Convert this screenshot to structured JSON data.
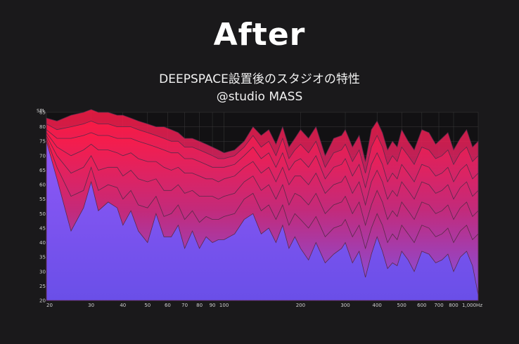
{
  "header": {
    "title": "After",
    "subtitle": "DEEPSPACE設置後のスタジオの特性",
    "credit": "@studio MASS"
  },
  "colors": {
    "background": "#1a191b",
    "plot_background": "#121113",
    "fill_top": "#ff1a44",
    "fill_bottom": "#7a55f0",
    "grid": "#3a3a3a",
    "line": "#5a2a4a"
  },
  "chart_data": {
    "type": "area",
    "ylabel": "SPL",
    "x_scale": "log",
    "xlim": [
      20,
      1000
    ],
    "ylim": [
      20,
      85
    ],
    "x_ticks": [
      20,
      30,
      40,
      50,
      60,
      70,
      80,
      90,
      100,
      200,
      300,
      400,
      500,
      600,
      700,
      800,
      1000
    ],
    "x_tick_labels": [
      "20",
      "30",
      "40",
      "50",
      "60",
      "70",
      "80",
      "90",
      "100",
      "200",
      "300",
      "400",
      "500",
      "600",
      "700",
      "800",
      "1,000Hz"
    ],
    "y_ticks": [
      20,
      25,
      30,
      35,
      40,
      45,
      50,
      55,
      60,
      65,
      70,
      75,
      80,
      85
    ],
    "x": [
      20,
      22,
      25,
      28,
      30,
      32,
      35,
      38,
      40,
      43,
      46,
      50,
      54,
      58,
      62,
      66,
      70,
      75,
      80,
      85,
      90,
      95,
      100,
      110,
      120,
      130,
      140,
      150,
      160,
      170,
      180,
      190,
      200,
      215,
      230,
      250,
      270,
      290,
      300,
      320,
      340,
      360,
      380,
      400,
      420,
      440,
      460,
      480,
      500,
      530,
      560,
      600,
      640,
      680,
      720,
      760,
      800,
      850,
      900,
      950,
      1000
    ],
    "series": [
      {
        "values": [
          83,
          82,
          84,
          85,
          86,
          85,
          85,
          84,
          84,
          83,
          82,
          81,
          80,
          80,
          79,
          78,
          76,
          76,
          75,
          74,
          73,
          72,
          71,
          72,
          75,
          80,
          77,
          79,
          74,
          80,
          73,
          76,
          79,
          76,
          80,
          70,
          76,
          77,
          79,
          73,
          77,
          68,
          79,
          82,
          78,
          72,
          75,
          73,
          79,
          75,
          72,
          79,
          78,
          74,
          76,
          78,
          72,
          76,
          79,
          73,
          75
        ]
      },
      {
        "values": [
          81,
          79,
          80,
          81,
          82,
          81,
          81,
          80,
          80,
          80,
          79,
          78,
          77,
          76,
          75,
          75,
          73,
          73,
          72,
          71,
          70,
          69,
          69,
          70,
          73,
          77,
          73,
          75,
          70,
          76,
          69,
          72,
          74,
          71,
          75,
          66,
          71,
          72,
          74,
          68,
          72,
          64,
          73,
          77,
          73,
          67,
          70,
          68,
          73,
          70,
          67,
          73,
          72,
          69,
          70,
          72,
          67,
          71,
          73,
          68,
          70
        ]
      },
      {
        "values": [
          79,
          76,
          76,
          77,
          78,
          77,
          77,
          76,
          76,
          76,
          75,
          74,
          73,
          72,
          71,
          71,
          69,
          69,
          68,
          67,
          66,
          66,
          66,
          67,
          70,
          73,
          69,
          71,
          66,
          71,
          65,
          68,
          69,
          66,
          70,
          62,
          66,
          67,
          69,
          63,
          67,
          59,
          67,
          71,
          67,
          61,
          64,
          62,
          67,
          64,
          61,
          67,
          66,
          63,
          64,
          66,
          61,
          65,
          67,
          62,
          64
        ]
      },
      {
        "values": [
          78,
          73,
          70,
          72,
          74,
          72,
          72,
          71,
          70,
          71,
          69,
          68,
          68,
          66,
          65,
          66,
          64,
          64,
          63,
          62,
          62,
          61,
          62,
          63,
          66,
          68,
          64,
          66,
          61,
          66,
          60,
          63,
          63,
          60,
          64,
          57,
          60,
          61,
          63,
          57,
          61,
          53,
          61,
          65,
          61,
          55,
          58,
          56,
          61,
          58,
          55,
          61,
          60,
          57,
          58,
          60,
          55,
          59,
          61,
          56,
          58
        ]
      },
      {
        "values": [
          77,
          70,
          64,
          66,
          70,
          65,
          66,
          66,
          63,
          65,
          62,
          61,
          62,
          58,
          58,
          60,
          57,
          58,
          56,
          56,
          56,
          55,
          56,
          57,
          61,
          63,
          58,
          60,
          55,
          60,
          53,
          57,
          56,
          53,
          57,
          50,
          53,
          54,
          56,
          50,
          54,
          46,
          53,
          58,
          54,
          48,
          51,
          49,
          54,
          51,
          48,
          54,
          53,
          50,
          51,
          53,
          48,
          52,
          54,
          49,
          51
        ]
      },
      {
        "values": [
          76,
          66,
          56,
          58,
          66,
          58,
          60,
          59,
          55,
          58,
          53,
          52,
          56,
          49,
          50,
          53,
          48,
          51,
          47,
          49,
          48,
          48,
          49,
          50,
          55,
          57,
          51,
          53,
          48,
          53,
          46,
          50,
          48,
          45,
          49,
          42,
          45,
          46,
          48,
          42,
          46,
          38,
          45,
          50,
          46,
          40,
          43,
          41,
          46,
          43,
          40,
          46,
          45,
          42,
          43,
          45,
          40,
          44,
          46,
          41,
          43
        ]
      },
      {
        "values": [
          75,
          62,
          44,
          52,
          61,
          51,
          54,
          52,
          46,
          51,
          44,
          40,
          50,
          42,
          42,
          46,
          38,
          44,
          38,
          42,
          40,
          41,
          41,
          43,
          48,
          50,
          43,
          45,
          40,
          46,
          38,
          42,
          38,
          34,
          40,
          33,
          36,
          38,
          40,
          33,
          37,
          28,
          36,
          42,
          37,
          31,
          33,
          32,
          37,
          34,
          30,
          37,
          36,
          33,
          34,
          36,
          30,
          35,
          37,
          32,
          22
        ]
      }
    ]
  }
}
